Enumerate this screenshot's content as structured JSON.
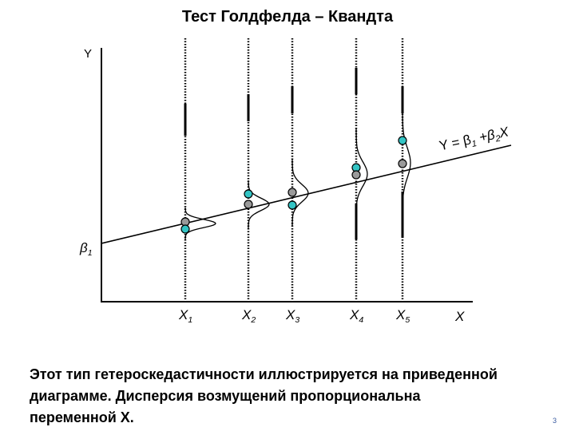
{
  "title": "Тест Голдфелда – Квандта",
  "y_axis_label": "Y",
  "x_axis_label": "X",
  "intercept_label": {
    "main": "β",
    "sub": "1"
  },
  "x_labels": [
    {
      "main": "X",
      "sub": "1"
    },
    {
      "main": "X",
      "sub": "2"
    },
    {
      "main": "X",
      "sub": "3"
    },
    {
      "main": "X",
      "sub": "4"
    },
    {
      "main": "X",
      "sub": "5"
    }
  ],
  "equation": {
    "parts": [
      "Y = β",
      "1",
      " +β",
      "2",
      "X"
    ]
  },
  "caption": [
    "Этот тип гетероскедастичности иллюстрируется на приведенной",
    "диаграмме. Дисперсия возмущений пропорциональна",
    "переменной X."
  ],
  "page_number": "3"
}
